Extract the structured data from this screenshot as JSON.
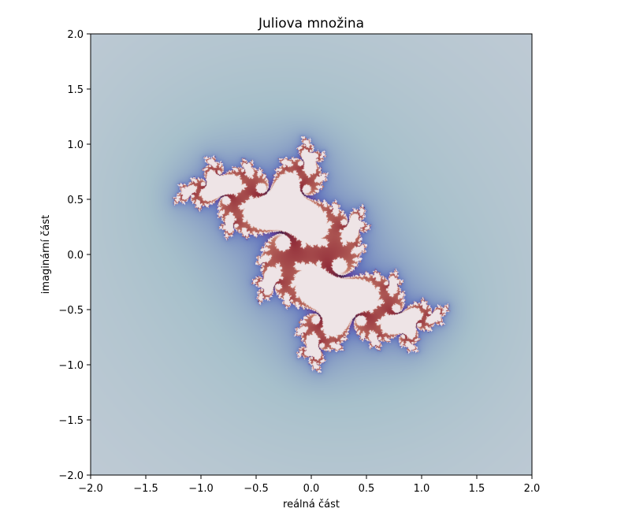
{
  "chart_data": {
    "type": "heatmap",
    "title": "Juliova množina",
    "xlabel": "reálná část",
    "ylabel": "imaginární část",
    "xlim": [
      -2.0,
      2.0
    ],
    "ylim": [
      -2.0,
      2.0
    ],
    "xticks": [
      -2.0,
      -1.5,
      -1.0,
      -0.5,
      0.0,
      0.5,
      1.0,
      1.5,
      2.0
    ],
    "yticks": [
      -2.0,
      -1.5,
      -1.0,
      -0.5,
      0.0,
      0.5,
      1.0,
      1.5,
      2.0
    ],
    "xtick_labels": [
      "−2.0",
      "−1.5",
      "−1.0",
      "−0.5",
      "0.0",
      "0.5",
      "1.0",
      "1.5",
      "2.0"
    ],
    "ytick_labels": [
      "−2.0",
      "−1.5",
      "−1.0",
      "−0.5",
      "0.0",
      "0.5",
      "1.0",
      "1.5",
      "2.0"
    ],
    "colormap": "twilight",
    "grid": false,
    "background_color": "#e2d9e2"
  }
}
